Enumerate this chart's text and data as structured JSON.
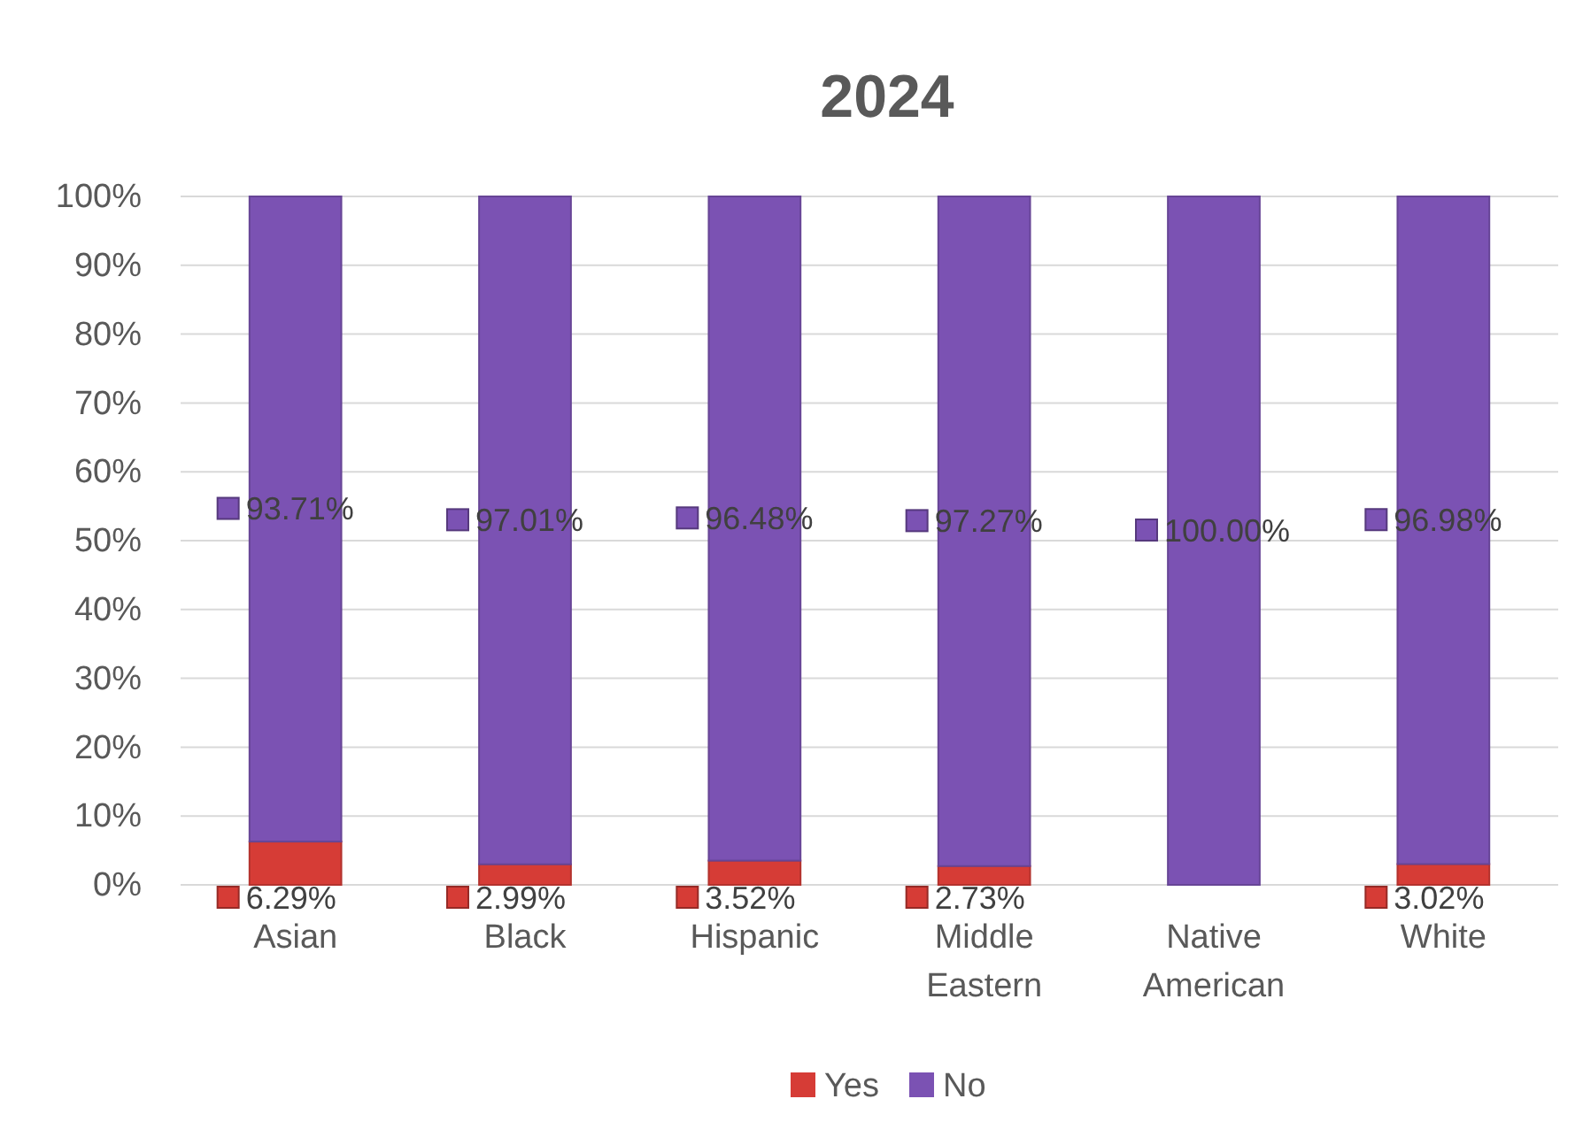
{
  "chart_data": {
    "type": "bar",
    "title": "2024",
    "stacked": true,
    "categories": [
      "Asian",
      "Black",
      "Hispanic",
      "Middle Eastern",
      "Native American",
      "White"
    ],
    "series": [
      {
        "name": "Yes",
        "color": "#d63c36",
        "values": [
          6.29,
          2.99,
          3.52,
          2.73,
          0,
          3.02
        ],
        "value_labels": [
          "6.29%",
          "2.99%",
          "3.52%",
          "2.73%",
          null,
          "3.02%"
        ]
      },
      {
        "name": "No",
        "color": "#7b52b3",
        "values": [
          93.71,
          97.01,
          96.48,
          97.27,
          100.0,
          96.98
        ],
        "value_labels": [
          "93.71%",
          "97.01%",
          "96.48%",
          "97.27%",
          "100.00%",
          "96.98%"
        ]
      }
    ],
    "ylim": [
      0,
      100
    ],
    "yticks": [
      {
        "value": 0,
        "label": "0%"
      },
      {
        "value": 10,
        "label": "10%"
      },
      {
        "value": 20,
        "label": "20%"
      },
      {
        "value": 30,
        "label": "30%"
      },
      {
        "value": 40,
        "label": "40%"
      },
      {
        "value": 50,
        "label": "50%"
      },
      {
        "value": 60,
        "label": "60%"
      },
      {
        "value": 70,
        "label": "70%"
      },
      {
        "value": 80,
        "label": "80%"
      },
      {
        "value": 90,
        "label": "90%"
      },
      {
        "value": 100,
        "label": "100%"
      }
    ],
    "grid": "y",
    "legend": "bottom"
  }
}
